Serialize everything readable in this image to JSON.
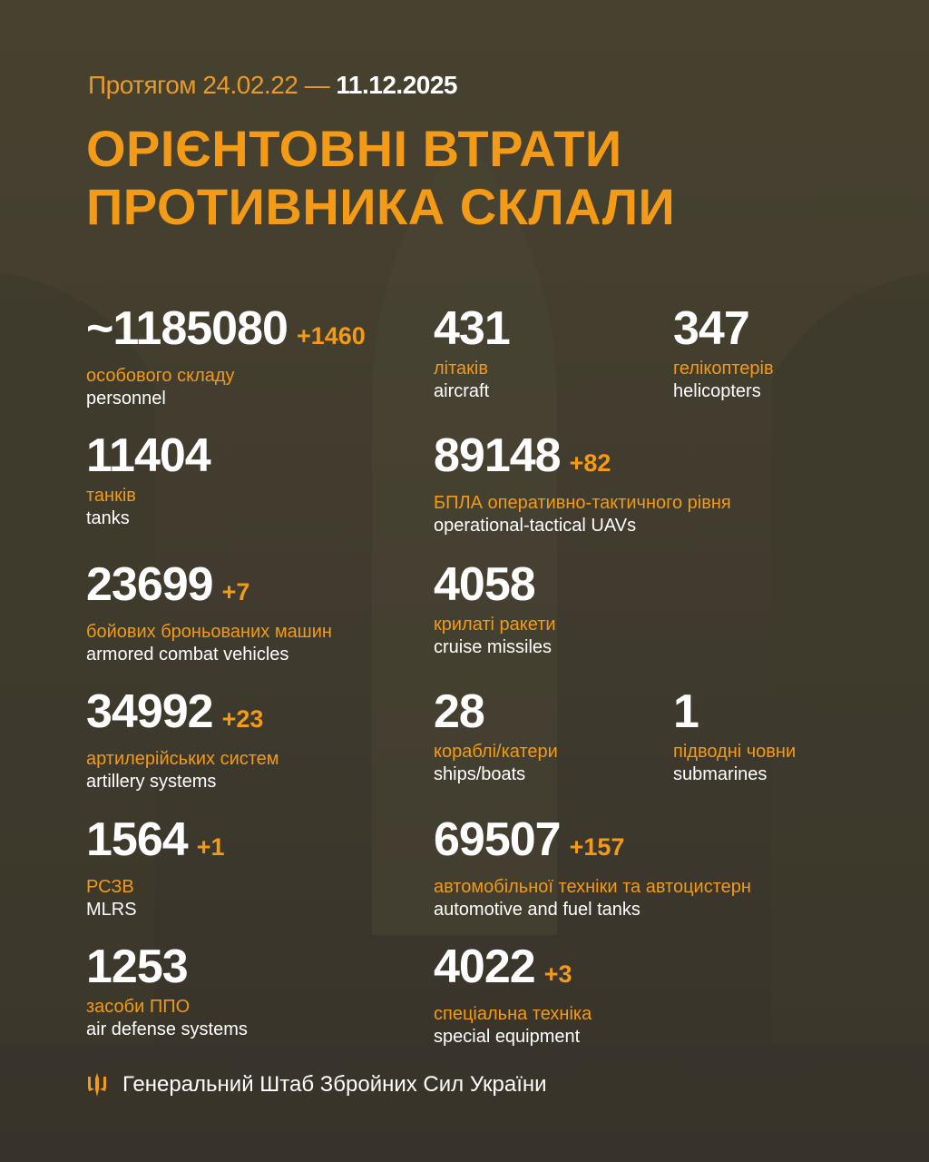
{
  "header": {
    "period_prefix": "Протягом 24.02.22 —",
    "period_date": "11.12.2025",
    "title_line1": "ОРІЄНТОВНІ ВТРАТИ",
    "title_line2": "ПРОТИВНИКА СКЛАЛИ"
  },
  "rows": [
    [
      {
        "value": "~1185080",
        "delta": "+1460",
        "ua": "особового складу",
        "en": "personnel"
      },
      {
        "value": "431",
        "delta": "",
        "ua": "літаків",
        "en": "aircraft"
      },
      {
        "value": "347",
        "delta": "",
        "ua": "гелікоптерів",
        "en": "helicopters"
      }
    ],
    [
      {
        "value": "11404",
        "delta": "",
        "ua": "танків",
        "en": "tanks"
      },
      {
        "value": "89148",
        "delta": "+82",
        "ua": "БПЛА оперативно-тактичного рівня",
        "en": "operational-tactical UAVs"
      }
    ],
    [
      {
        "value": "23699",
        "delta": "+7",
        "ua": "бойових броньованих машин",
        "en": "armored combat vehicles"
      },
      {
        "value": "4058",
        "delta": "",
        "ua": "крилаті ракети",
        "en": "cruise missiles"
      }
    ],
    [
      {
        "value": "34992",
        "delta": "+23",
        "ua": "артилерійських систем",
        "en": "artillery systems"
      },
      {
        "value": "28",
        "delta": "",
        "ua": "кораблі/катери",
        "en": "ships/boats"
      },
      {
        "value": "1",
        "delta": "",
        "ua": "підводні човни",
        "en": "submarines"
      }
    ],
    [
      {
        "value": "1564",
        "delta": "+1",
        "ua": "РСЗВ",
        "en": "MLRS"
      },
      {
        "value": "69507",
        "delta": "+157",
        "ua": "автомобільної техніки та автоцистерн",
        "en": "automotive and fuel tanks"
      }
    ],
    [
      {
        "value": "1253",
        "delta": "",
        "ua": "засоби ППО",
        "en": "air defense systems"
      },
      {
        "value": "4022",
        "delta": "+3",
        "ua": "спеціальна техніка",
        "en": "special equipment"
      }
    ]
  ],
  "footer": {
    "org": "Генеральний Штаб Збройних Сил України",
    "icon": "trident-icon"
  },
  "colors": {
    "accent": "#f39a16",
    "background": "#433e2f",
    "text": "#ffffff"
  }
}
